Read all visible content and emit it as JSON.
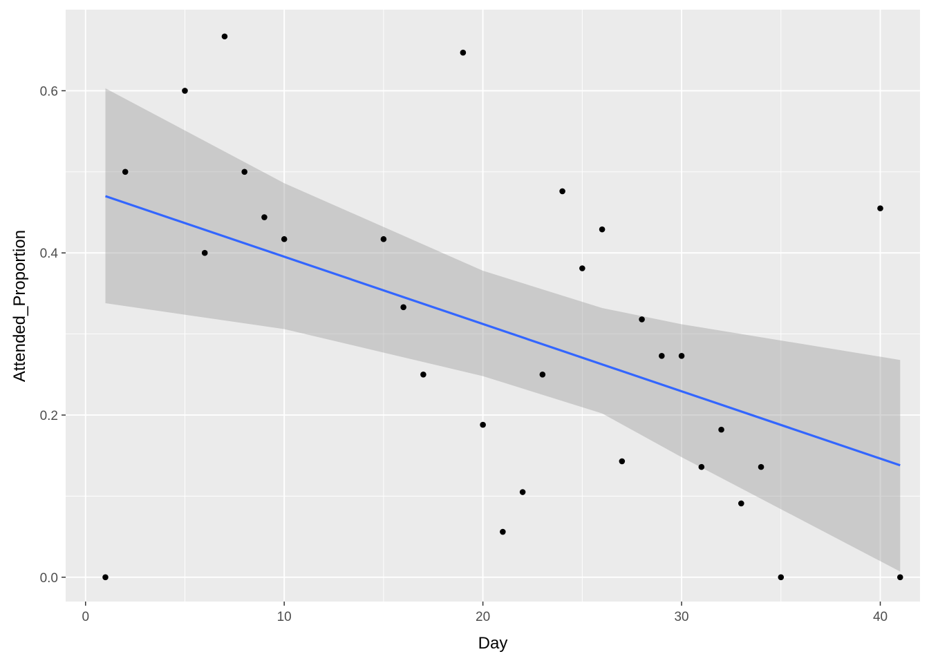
{
  "chart_data": {
    "type": "scatter",
    "title": "",
    "xlabel": "Day",
    "ylabel": "Attended_Proportion",
    "xlim": [
      -1,
      42
    ],
    "ylim": [
      -0.03,
      0.7
    ],
    "x_ticks": [
      0,
      10,
      20,
      30,
      40
    ],
    "x_tick_labels": [
      "0",
      "10",
      "20",
      "30",
      "40"
    ],
    "y_ticks": [
      0.0,
      0.2,
      0.4,
      0.6
    ],
    "y_tick_labels": [
      "0.0",
      "0.2",
      "0.4",
      "0.6"
    ],
    "grid": true,
    "points": [
      {
        "x": 1,
        "y": 0.0
      },
      {
        "x": 2,
        "y": 0.5
      },
      {
        "x": 5,
        "y": 0.6
      },
      {
        "x": 6,
        "y": 0.4
      },
      {
        "x": 7,
        "y": 0.667
      },
      {
        "x": 8,
        "y": 0.5
      },
      {
        "x": 9,
        "y": 0.444
      },
      {
        "x": 10,
        "y": 0.417
      },
      {
        "x": 15,
        "y": 0.417
      },
      {
        "x": 16,
        "y": 0.333
      },
      {
        "x": 17,
        "y": 0.25
      },
      {
        "x": 19,
        "y": 0.647
      },
      {
        "x": 20,
        "y": 0.188
      },
      {
        "x": 21,
        "y": 0.056
      },
      {
        "x": 22,
        "y": 0.105
      },
      {
        "x": 23,
        "y": 0.25
      },
      {
        "x": 24,
        "y": 0.476
      },
      {
        "x": 25,
        "y": 0.381
      },
      {
        "x": 26,
        "y": 0.429
      },
      {
        "x": 27,
        "y": 0.143
      },
      {
        "x": 28,
        "y": 0.318
      },
      {
        "x": 29,
        "y": 0.273
      },
      {
        "x": 30,
        "y": 0.273
      },
      {
        "x": 31,
        "y": 0.136
      },
      {
        "x": 32,
        "y": 0.182
      },
      {
        "x": 33,
        "y": 0.091
      },
      {
        "x": 34,
        "y": 0.136
      },
      {
        "x": 35,
        "y": 0.0
      },
      {
        "x": 40,
        "y": 0.455
      },
      {
        "x": 41,
        "y": 0.0
      }
    ],
    "trend_line": {
      "method": "linear",
      "x": [
        1,
        41
      ],
      "y": [
        0.47,
        0.138
      ],
      "color": "#3366FF"
    },
    "confidence_band": {
      "x": [
        1,
        10,
        20,
        26,
        30,
        41
      ],
      "lower": [
        0.338,
        0.306,
        0.248,
        0.202,
        0.148,
        0.007
      ],
      "upper": [
        0.603,
        0.486,
        0.378,
        0.332,
        0.312,
        0.268
      ],
      "color": "#999999"
    },
    "colors": {
      "panel_background": "#EBEBEB",
      "grid_major": "#FFFFFF",
      "point": "#000000",
      "trend_line": "#3366FF",
      "band": "#999999"
    }
  }
}
